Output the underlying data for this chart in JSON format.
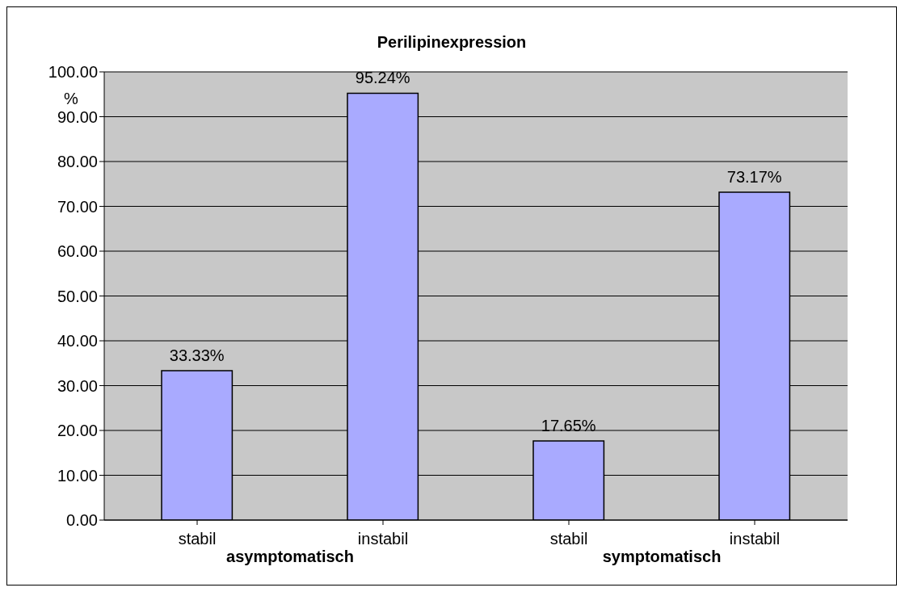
{
  "chart_data": {
    "type": "bar",
    "title": "Perilipinexpression",
    "ylabel": "%",
    "categories": [
      "stabil",
      "instabil",
      "stabil",
      "instabil"
    ],
    "values": [
      33.33,
      95.24,
      17.65,
      73.17
    ],
    "value_labels": [
      "33.33%",
      "95.24%",
      "17.65%",
      "73.17%"
    ],
    "color": "#a9aaff",
    "ylim": [
      0,
      100
    ],
    "yticks": [
      {
        "value": 0,
        "label": "0.00"
      },
      {
        "value": 10,
        "label": "10.00"
      },
      {
        "value": 20,
        "label": "20.00"
      },
      {
        "value": 30,
        "label": "30.00"
      },
      {
        "value": 40,
        "label": "40.00"
      },
      {
        "value": 50,
        "label": "50.00"
      },
      {
        "value": 60,
        "label": "60.00"
      },
      {
        "value": 70,
        "label": "70.00"
      },
      {
        "value": 80,
        "label": "80.00"
      },
      {
        "value": 90,
        "label": "90.00"
      },
      {
        "value": 100,
        "label": "100.00"
      }
    ],
    "grid": "y",
    "annotations": [
      "asymptomatisch",
      "symptomatisch"
    ]
  }
}
